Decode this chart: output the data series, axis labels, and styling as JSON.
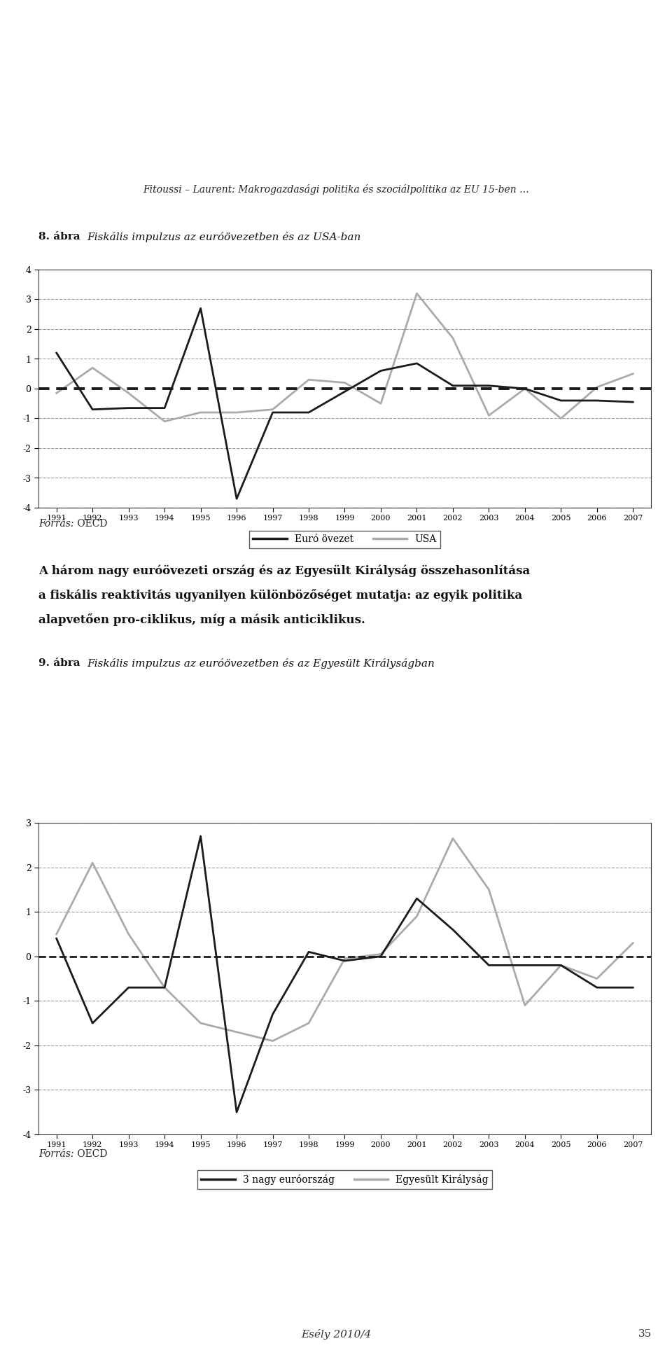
{
  "years": [
    1991,
    1992,
    1993,
    1994,
    1995,
    1996,
    1997,
    1998,
    1999,
    2000,
    2001,
    2002,
    2003,
    2004,
    2005,
    2006,
    2007
  ],
  "chart1": {
    "series1_label": "Euró övezet",
    "series2_label": "USA",
    "series1": [
      1.2,
      -0.7,
      -0.65,
      -0.65,
      2.7,
      -3.7,
      -0.8,
      -0.8,
      -0.1,
      0.6,
      0.85,
      0.1,
      0.1,
      0.0,
      -0.4,
      -0.4,
      -0.45
    ],
    "series2": [
      -0.15,
      0.7,
      -0.15,
      -1.1,
      -0.8,
      -0.8,
      -0.7,
      0.3,
      0.2,
      -0.5,
      3.2,
      1.7,
      -0.9,
      0.0,
      -1.0,
      0.05,
      0.5
    ],
    "ylim": [
      -4,
      4
    ],
    "yticks": [
      -4,
      -3,
      -2,
      -1,
      0,
      1,
      2,
      3,
      4
    ]
  },
  "chart2": {
    "series1_label": "3 nagy euróország",
    "series2_label": "Egyesült Királyság",
    "series1": [
      0.4,
      -1.5,
      -0.7,
      -0.7,
      2.7,
      -3.5,
      -1.3,
      0.1,
      -0.1,
      0.0,
      1.3,
      0.6,
      -0.2,
      -0.2,
      -0.2,
      -0.7,
      -0.7
    ],
    "series2": [
      0.5,
      2.1,
      0.5,
      -0.7,
      -1.5,
      -1.7,
      -1.9,
      -1.5,
      -0.05,
      0.05,
      0.9,
      2.65,
      1.5,
      -1.1,
      -0.2,
      -0.5,
      0.3
    ],
    "ylim": [
      -4,
      3
    ],
    "yticks": [
      -4,
      -3,
      -2,
      -1,
      0,
      1,
      2,
      3
    ]
  },
  "header_italic": "Fitoussi – Laurent: Makrogazdasági politika és szociálpolitika az EU 15-ben …",
  "title1_bold": "8. ábra",
  "title1_italic": "Fiskális impulzus az euróövezetben és az USA-ban",
  "title2_bold": "9. ábra",
  "title2_italic": "Fiskális impulzus az euróövezetben és az Egyesült Királyságban",
  "source_italic": "Forrás:",
  "source_normal": " OECD",
  "text_line1": "A három nagy euróövezeti ország és az Egyesült Királyság összehasonlítása",
  "text_line2": "a fiskális reaktivitás ugyanilyen különbözőséget mutatja: az egyik politika",
  "text_line3": "alapvetően pro-ciklikus, míg a másik anticiklikus.",
  "footer_italic": "Esély 2010/4",
  "footer_number": "35",
  "color_black": "#1a1a1a",
  "color_gray": "#aaaaaa",
  "background": "#ffffff"
}
